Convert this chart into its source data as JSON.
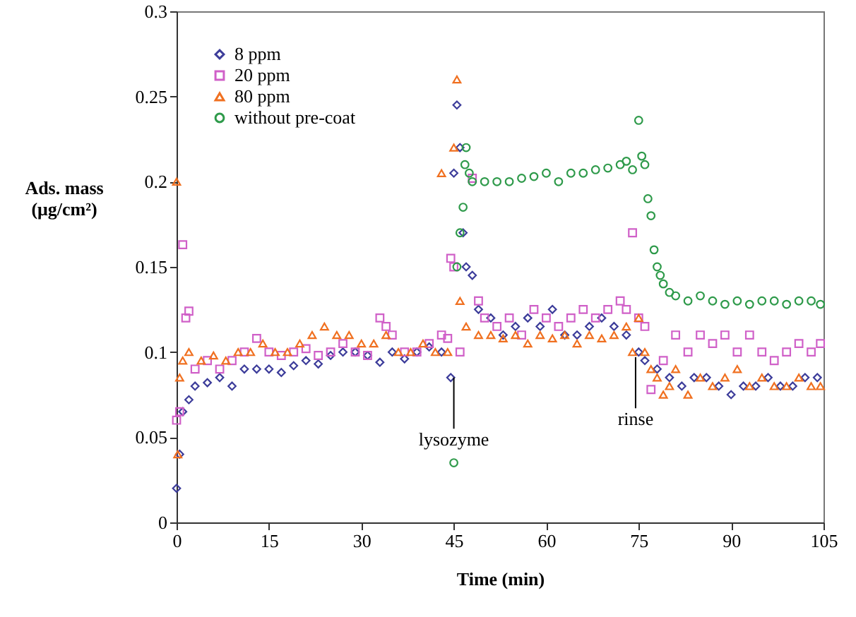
{
  "chart_data": {
    "type": "scatter",
    "xlabel": "Time (min)",
    "ylabel": "Ads. mass\n(μg/cm²)",
    "xlim": [
      0,
      105
    ],
    "xticks": [
      0,
      15,
      30,
      45,
      60,
      75,
      90,
      105
    ],
    "ylim": [
      0,
      0.3
    ],
    "yticks": [
      0,
      0.05,
      0.1,
      0.15,
      0.2,
      0.25,
      0.3
    ],
    "grid": false,
    "legend": "top left",
    "annotations": [
      {
        "text": "lysozyme",
        "x": 45,
        "y": 0.085
      },
      {
        "text": "rinse",
        "x": 74.5,
        "y": 0.097
      }
    ],
    "series": [
      {
        "name": "8 ppm",
        "color": "#3c3c9a",
        "marker": "diamond",
        "x": [
          0,
          0.5,
          1,
          2,
          3,
          5,
          7,
          9,
          11,
          13,
          15,
          17,
          19,
          21,
          23,
          25,
          27,
          29,
          31,
          33,
          35,
          37,
          39,
          41,
          43,
          44.5,
          45,
          45.5,
          46,
          46.5,
          47,
          48,
          49,
          51,
          53,
          55,
          57,
          59,
          61,
          63,
          65,
          67,
          69,
          71,
          73,
          75,
          76,
          78,
          80,
          82,
          84,
          86,
          88,
          90,
          92,
          94,
          96,
          98,
          100,
          102,
          104
        ],
        "values": [
          0.02,
          0.04,
          0.065,
          0.072,
          0.08,
          0.082,
          0.085,
          0.08,
          0.09,
          0.09,
          0.09,
          0.088,
          0.092,
          0.095,
          0.093,
          0.098,
          0.1,
          0.1,
          0.098,
          0.094,
          0.1,
          0.096,
          0.1,
          0.103,
          0.1,
          0.085,
          0.205,
          0.245,
          0.22,
          0.17,
          0.15,
          0.145,
          0.125,
          0.12,
          0.11,
          0.115,
          0.12,
          0.115,
          0.125,
          0.11,
          0.11,
          0.115,
          0.12,
          0.115,
          0.11,
          0.1,
          0.095,
          0.09,
          0.085,
          0.08,
          0.085,
          0.085,
          0.08,
          0.075,
          0.08,
          0.08,
          0.085,
          0.08,
          0.08,
          0.085,
          0.085
        ]
      },
      {
        "name": "20 ppm",
        "color": "#d060c8",
        "marker": "square",
        "x": [
          0,
          0.5,
          1,
          1.5,
          2,
          3,
          5,
          7,
          9,
          11,
          13,
          15,
          17,
          19,
          21,
          23,
          25,
          27,
          29,
          31,
          33,
          34,
          35,
          37,
          39,
          41,
          43,
          44,
          44.5,
          45,
          46,
          48,
          49,
          50,
          52,
          54,
          56,
          58,
          60,
          62,
          64,
          66,
          68,
          70,
          72,
          73,
          74,
          75,
          76,
          77,
          79,
          81,
          83,
          85,
          87,
          89,
          91,
          93,
          95,
          97,
          99,
          101,
          103,
          104.5
        ],
        "values": [
          0.06,
          0.065,
          0.163,
          0.12,
          0.124,
          0.09,
          0.095,
          0.09,
          0.095,
          0.1,
          0.108,
          0.1,
          0.098,
          0.1,
          0.102,
          0.098,
          0.1,
          0.105,
          0.1,
          0.098,
          0.12,
          0.115,
          0.11,
          0.1,
          0.1,
          0.105,
          0.11,
          0.108,
          0.155,
          0.15,
          0.1,
          0.202,
          0.13,
          0.12,
          0.115,
          0.12,
          0.11,
          0.125,
          0.12,
          0.115,
          0.12,
          0.125,
          0.12,
          0.125,
          0.13,
          0.125,
          0.17,
          0.12,
          0.115,
          0.078,
          0.095,
          0.11,
          0.1,
          0.11,
          0.105,
          0.11,
          0.1,
          0.11,
          0.1,
          0.095,
          0.1,
          0.105,
          0.1,
          0.105
        ]
      },
      {
        "name": "80 ppm",
        "color": "#f07020",
        "marker": "triangle",
        "x": [
          0,
          0.2,
          0.5,
          1,
          2,
          4,
          6,
          8,
          10,
          12,
          14,
          16,
          18,
          20,
          22,
          24,
          26,
          28,
          30,
          32,
          34,
          36,
          38,
          40,
          42,
          43,
          44,
          45,
          45.5,
          46,
          47,
          49,
          51,
          53,
          55,
          57,
          59,
          61,
          63,
          65,
          67,
          69,
          71,
          73,
          74,
          75,
          76,
          77,
          78,
          79,
          80,
          81,
          83,
          85,
          87,
          89,
          91,
          93,
          95,
          97,
          99,
          101,
          103,
          104.5
        ],
        "values": [
          0.2,
          0.04,
          0.085,
          0.095,
          0.1,
          0.095,
          0.098,
          0.095,
          0.1,
          0.1,
          0.105,
          0.1,
          0.1,
          0.105,
          0.11,
          0.115,
          0.11,
          0.11,
          0.105,
          0.105,
          0.11,
          0.1,
          0.1,
          0.105,
          0.1,
          0.205,
          0.1,
          0.22,
          0.26,
          0.13,
          0.115,
          0.11,
          0.11,
          0.108,
          0.11,
          0.105,
          0.11,
          0.108,
          0.11,
          0.105,
          0.11,
          0.108,
          0.11,
          0.115,
          0.1,
          0.12,
          0.1,
          0.09,
          0.085,
          0.075,
          0.08,
          0.09,
          0.075,
          0.085,
          0.08,
          0.085,
          0.09,
          0.08,
          0.085,
          0.08,
          0.08,
          0.085,
          0.08,
          0.08
        ]
      },
      {
        "name": "without pre-coat",
        "color": "#2e9a4a",
        "marker": "circle",
        "x": [
          45,
          45.5,
          46,
          46.5,
          46.8,
          47,
          47.5,
          48,
          50,
          52,
          54,
          56,
          58,
          60,
          62,
          64,
          66,
          68,
          70,
          72,
          73,
          74,
          75,
          75.5,
          76,
          76.5,
          77,
          77.5,
          78,
          78.5,
          79,
          80,
          81,
          83,
          85,
          87,
          89,
          91,
          93,
          95,
          97,
          99,
          101,
          103,
          104.5
        ],
        "values": [
          0.035,
          0.15,
          0.17,
          0.185,
          0.21,
          0.22,
          0.205,
          0.2,
          0.2,
          0.2,
          0.2,
          0.202,
          0.203,
          0.205,
          0.2,
          0.205,
          0.205,
          0.207,
          0.208,
          0.21,
          0.212,
          0.207,
          0.236,
          0.215,
          0.21,
          0.19,
          0.18,
          0.16,
          0.15,
          0.145,
          0.14,
          0.135,
          0.133,
          0.13,
          0.133,
          0.13,
          0.128,
          0.13,
          0.128,
          0.13,
          0.13,
          0.128,
          0.13,
          0.13,
          0.128
        ]
      }
    ]
  }
}
